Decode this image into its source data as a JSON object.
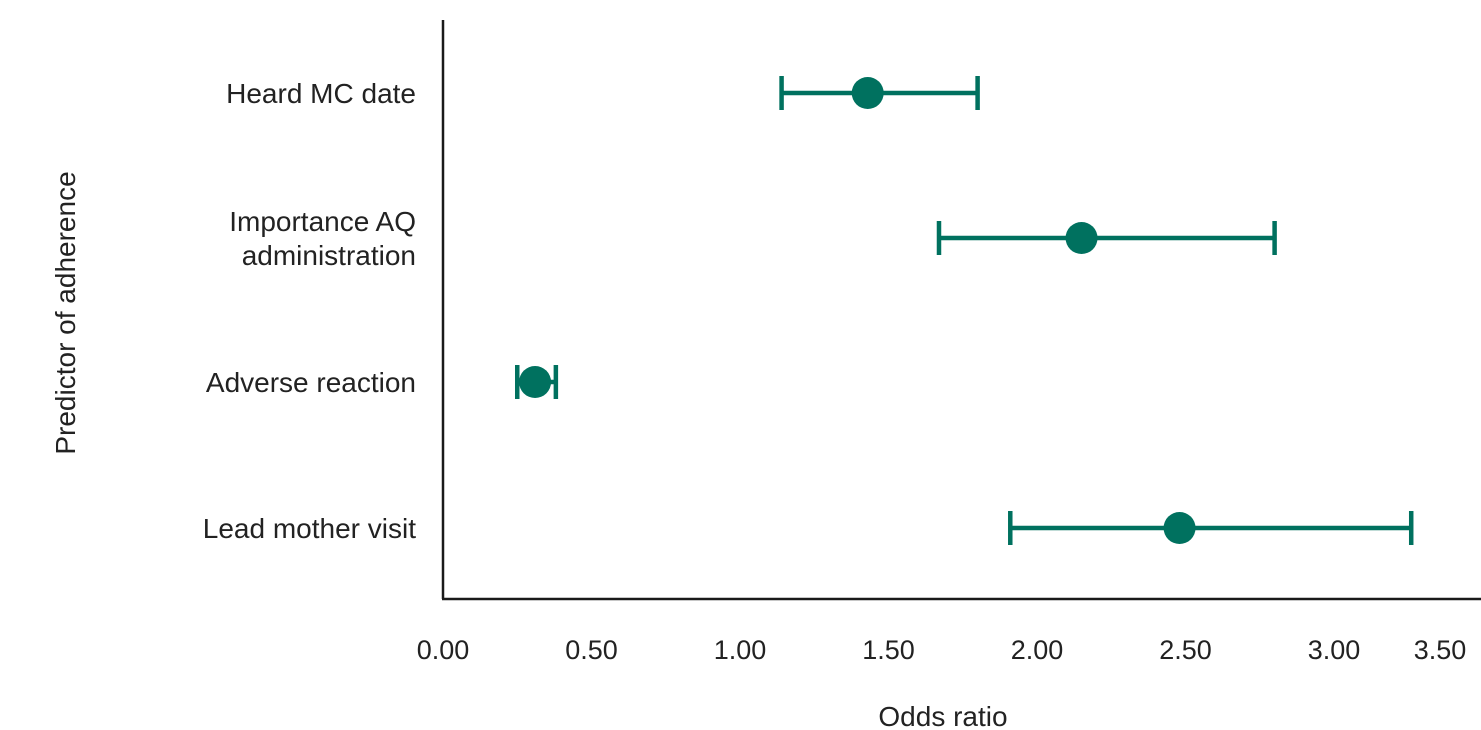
{
  "chart_data": {
    "type": "scatter",
    "subtype": "forest-plot-horizontal-error-bars",
    "title": "",
    "xlabel": "Odds ratio",
    "ylabel": "Predictor of adherence",
    "xlim": [
      0,
      3.5
    ],
    "x_ticks": [
      "0.00",
      "0.50",
      "1.00",
      "1.50",
      "2.00",
      "2.50",
      "3.00",
      "3.50"
    ],
    "grid": false,
    "legend": "none",
    "colors": {
      "marker": "#00715f",
      "axis": "#1a1a1a",
      "text": "#222222"
    },
    "categories": [
      {
        "label_lines": [
          "Heard MC date"
        ],
        "odds_ratio": 1.43,
        "ci_low": 1.14,
        "ci_high": 1.8
      },
      {
        "label_lines": [
          "Importance AQ",
          "administration"
        ],
        "odds_ratio": 2.15,
        "ci_low": 1.67,
        "ci_high": 2.8
      },
      {
        "label_lines": [
          "Adverse reaction"
        ],
        "odds_ratio": 0.31,
        "ci_low": 0.25,
        "ci_high": 0.38
      },
      {
        "label_lines": [
          "Lead mother visit"
        ],
        "odds_ratio": 2.48,
        "ci_low": 1.91,
        "ci_high": 3.26
      }
    ]
  }
}
